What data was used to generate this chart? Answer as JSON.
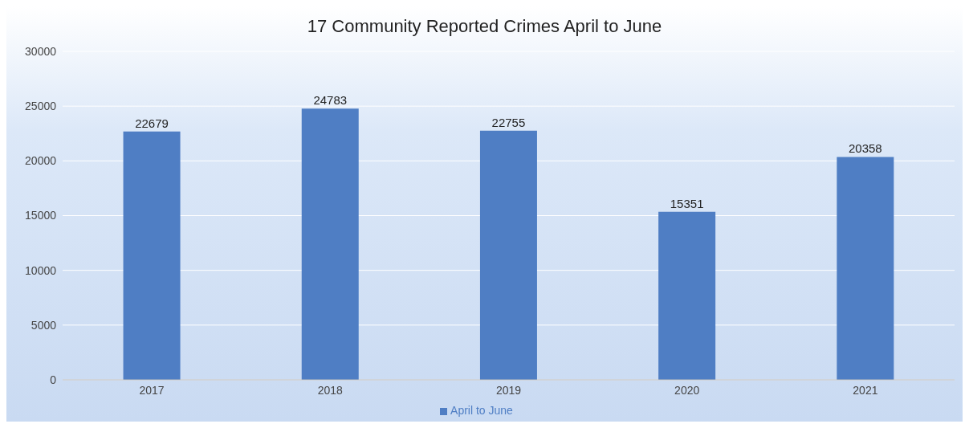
{
  "chart_data": {
    "type": "bar",
    "title": "17 Community Reported Crimes April to June",
    "categories": [
      "2017",
      "2018",
      "2019",
      "2020",
      "2021"
    ],
    "series": [
      {
        "name": "April to June",
        "color": "#4f7ec4",
        "values": [
          22679,
          24783,
          22755,
          15351,
          20358
        ]
      }
    ],
    "ylim": [
      0,
      30000
    ],
    "yticks": [
      0,
      5000,
      10000,
      15000,
      20000,
      25000,
      30000
    ],
    "grid": "y",
    "legend": "bottom",
    "data_labels": true
  }
}
